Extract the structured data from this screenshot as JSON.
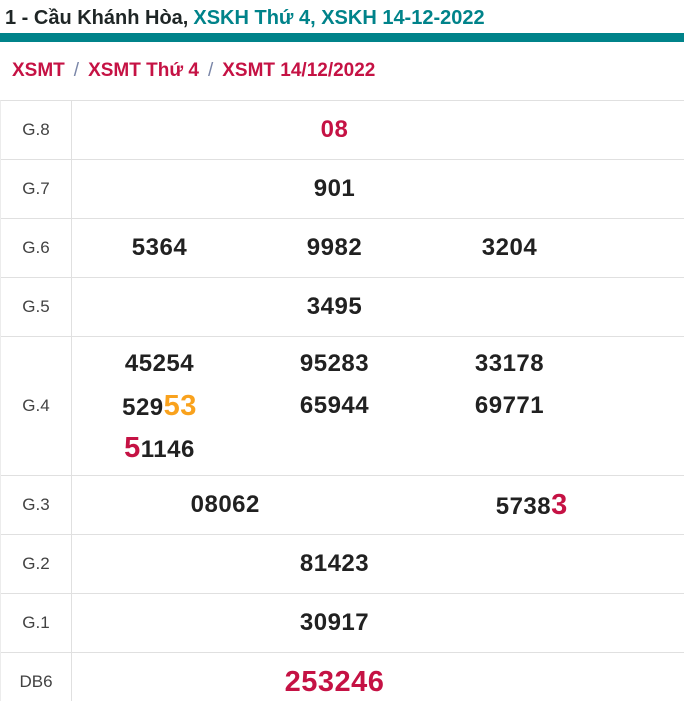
{
  "header": {
    "title_dark": "1 - Cầu Khánh Hòa,",
    "title_teal": "XSKH Thứ 4, XSKH 14-12-2022"
  },
  "breadcrumb": {
    "separator": "/",
    "items": [
      {
        "label": "XSMT"
      },
      {
        "label": "XSMT Thứ 4"
      },
      {
        "label": "XSMT 14/12/2022"
      }
    ]
  },
  "colors": {
    "teal": "#00838a",
    "crimson": "#c51244",
    "orange": "#f9a21d",
    "number_dark": "#212121"
  },
  "table": {
    "rows": [
      {
        "label": "G.8",
        "layout": "single",
        "lines": [
          [
            [
              {
                "t": "08",
                "c": "crimson"
              }
            ]
          ]
        ]
      },
      {
        "label": "G.7",
        "layout": "single",
        "lines": [
          [
            [
              {
                "t": "901"
              }
            ]
          ]
        ]
      },
      {
        "label": "G.6",
        "layout": "cols3",
        "lines": [
          [
            [
              {
                "t": "5364"
              }
            ],
            [
              {
                "t": "9982"
              }
            ],
            [
              {
                "t": "3204"
              }
            ]
          ]
        ]
      },
      {
        "label": "G.5",
        "layout": "single",
        "lines": [
          [
            [
              {
                "t": "3495"
              }
            ]
          ]
        ]
      },
      {
        "label": "G.4",
        "layout": "cols3",
        "lines": [
          [
            [
              {
                "t": "45254"
              }
            ],
            [
              {
                "t": "95283"
              }
            ],
            [
              {
                "t": "33178"
              }
            ]
          ],
          [
            [
              {
                "t": "529"
              },
              {
                "t": "53",
                "c": "orange",
                "lg": true
              }
            ],
            [
              {
                "t": "65944"
              }
            ],
            [
              {
                "t": "69771"
              }
            ]
          ],
          [
            [
              {
                "t": "5",
                "c": "crimson",
                "lg": true
              },
              {
                "t": "1146"
              }
            ],
            [],
            []
          ]
        ]
      },
      {
        "label": "G.3",
        "layout": "cols2",
        "lines": [
          [
            [
              {
                "t": "08062"
              }
            ],
            [
              {
                "t": "5738"
              },
              {
                "t": "3",
                "c": "crimson",
                "lg": true
              }
            ]
          ]
        ]
      },
      {
        "label": "G.2",
        "layout": "single",
        "lines": [
          [
            [
              {
                "t": "81423"
              }
            ]
          ]
        ]
      },
      {
        "label": "G.1",
        "layout": "single",
        "lines": [
          [
            [
              {
                "t": "30917"
              }
            ]
          ]
        ]
      },
      {
        "label": "DB6",
        "layout": "single",
        "lines": [
          [
            [
              {
                "t": "253246",
                "c": "crimson",
                "lg": true
              }
            ]
          ]
        ]
      }
    ]
  }
}
